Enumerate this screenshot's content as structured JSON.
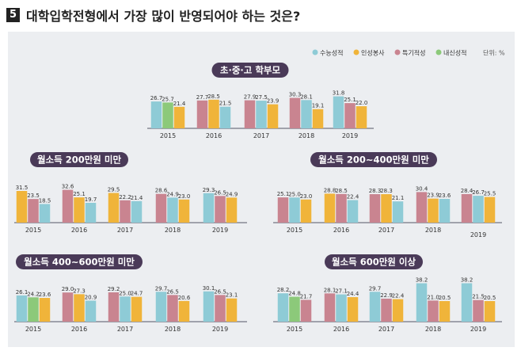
{
  "title": {
    "number": "5",
    "text": "대학입학전형에서 가장 많이 반영되어야 하는 것은?"
  },
  "unit": "단위: %",
  "chart_data": {
    "type": "bar",
    "legend": [
      {
        "name": "수능성적",
        "color": "#8ecbd6"
      },
      {
        "name": "인성봉사",
        "color": "#f0b43a"
      },
      {
        "name": "특기적성",
        "color": "#c98490"
      },
      {
        "name": "내신성적",
        "color": "#8cc97a"
      }
    ],
    "legend_position": "top-right",
    "grid": false,
    "categories": [
      "2015",
      "2016",
      "2017",
      "2018",
      "2019"
    ],
    "charts": [
      {
        "title": "초·중·고 학부모",
        "groups": [
          [
            {
              "s": "수능성적",
              "v": 26.7
            },
            {
              "s": "내신성적",
              "v": 25.7
            },
            {
              "s": "인성봉사",
              "v": 21.4
            }
          ],
          [
            {
              "s": "특기적성",
              "v": 27.7
            },
            {
              "s": "인성봉사",
              "v": 28.5
            },
            {
              "s": "수능성적",
              "v": 21.5
            }
          ],
          [
            {
              "s": "특기적성",
              "v": 27.9
            },
            {
              "s": "수능성적",
              "v": 27.5
            },
            {
              "s": "인성봉사",
              "v": 23.9
            }
          ],
          [
            {
              "s": "특기적성",
              "v": 30.3
            },
            {
              "s": "수능성적",
              "v": 28.1
            },
            {
              "s": "인성봉사",
              "v": 19.1
            }
          ],
          [
            {
              "s": "수능성적",
              "v": 31.8
            },
            {
              "s": "특기적성",
              "v": 25.1
            },
            {
              "s": "인성봉사",
              "v": 22.0
            }
          ]
        ]
      },
      {
        "title": "월소득 200만원 미만",
        "groups": [
          [
            {
              "s": "인성봉사",
              "v": 31.5
            },
            {
              "s": "특기적성",
              "v": 23.5
            },
            {
              "s": "수능성적",
              "v": 18.5
            }
          ],
          [
            {
              "s": "특기적성",
              "v": 32.6
            },
            {
              "s": "인성봉사",
              "v": 25.1
            },
            {
              "s": "수능성적",
              "v": 19.7
            }
          ],
          [
            {
              "s": "인성봉사",
              "v": 29.5
            },
            {
              "s": "특기적성",
              "v": 22.2
            },
            {
              "s": "수능성적",
              "v": 21.4
            }
          ],
          [
            {
              "s": "특기적성",
              "v": 28.6
            },
            {
              "s": "수능성적",
              "v": 24.9
            },
            {
              "s": "인성봉사",
              "v": 23.0
            }
          ],
          [
            {
              "s": "수능성적",
              "v": 29.3
            },
            {
              "s": "특기적성",
              "v": 26.5
            },
            {
              "s": "인성봉사",
              "v": 24.9
            }
          ]
        ]
      },
      {
        "title": "월소득 200~400만원 미만",
        "groups": [
          [
            {
              "s": "특기적성",
              "v": 25.1
            },
            {
              "s": "수능성적",
              "v": 25.0
            },
            {
              "s": "인성봉사",
              "v": 23.0
            }
          ],
          [
            {
              "s": "인성봉사",
              "v": 28.8
            },
            {
              "s": "특기적성",
              "v": 28.5
            },
            {
              "s": "수능성적",
              "v": 22.4
            }
          ],
          [
            {
              "s": "특기적성",
              "v": 28.3
            },
            {
              "s": "인성봉사",
              "v": 28.3
            },
            {
              "s": "수능성적",
              "v": 21.1
            }
          ],
          [
            {
              "s": "특기적성",
              "v": 30.4
            },
            {
              "s": "인성봉사",
              "v": 23.9
            },
            {
              "s": "수능성적",
              "v": 23.6
            }
          ],
          [
            {
              "s": "특기적성",
              "v": 28.4
            },
            {
              "s": "수능성적",
              "v": 26.7
            },
            {
              "s": "인성봉사",
              "v": 25.5
            }
          ]
        ]
      },
      {
        "title": "월소득 400~600만원 미만",
        "groups": [
          [
            {
              "s": "수능성적",
              "v": 26.1
            },
            {
              "s": "내신성적",
              "v": 24.2
            },
            {
              "s": "인성봉사",
              "v": 23.6
            }
          ],
          [
            {
              "s": "특기적성",
              "v": 29.0
            },
            {
              "s": "인성봉사",
              "v": 27.3
            },
            {
              "s": "수능성적",
              "v": 20.9
            }
          ],
          [
            {
              "s": "특기적성",
              "v": 29.2
            },
            {
              "s": "수능성적",
              "v": 25.0
            },
            {
              "s": "인성봉사",
              "v": 24.7
            }
          ],
          [
            {
              "s": "수능성적",
              "v": 29.7
            },
            {
              "s": "특기적성",
              "v": 26.5
            },
            {
              "s": "인성봉사",
              "v": 20.6
            }
          ],
          [
            {
              "s": "수능성적",
              "v": 30.1
            },
            {
              "s": "특기적성",
              "v": 26.5
            },
            {
              "s": "인성봉사",
              "v": 23.1
            }
          ]
        ]
      },
      {
        "title": "월소득 600만원 이상",
        "groups": [
          [
            {
              "s": "수능성적",
              "v": 28.2
            },
            {
              "s": "내신성적",
              "v": 24.8
            },
            {
              "s": "특기적성",
              "v": 21.7
            }
          ],
          [
            {
              "s": "특기적성",
              "v": 28.1
            },
            {
              "s": "수능성적",
              "v": 27.1
            },
            {
              "s": "인성봉사",
              "v": 24.4
            }
          ],
          [
            {
              "s": "수능성적",
              "v": 29.7
            },
            {
              "s": "특기적성",
              "v": 22.9
            },
            {
              "s": "인성봉사",
              "v": 22.4
            }
          ],
          [
            {
              "s": "수능성적",
              "v": 38.2
            },
            {
              "s": "특기적성",
              "v": 21.0
            },
            {
              "s": "인성봉사",
              "v": 20.5
            }
          ],
          [
            {
              "s": "수능성적",
              "v": 38.2
            },
            {
              "s": "특기적성",
              "v": 21.5
            },
            {
              "s": "인성봉사",
              "v": 20.5
            }
          ]
        ]
      }
    ]
  }
}
